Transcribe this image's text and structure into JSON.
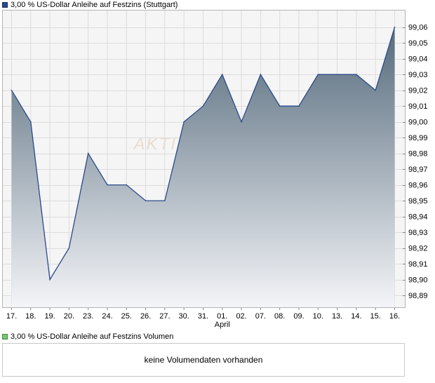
{
  "price_legend": {
    "label": "3,00 % US-Dollar Anleihe auf Festzins (Stuttgart)",
    "swatch_color": "#2a4a8c"
  },
  "volume_legend": {
    "label": "3,00 % US-Dollar Anleihe auf Festzins Volumen",
    "swatch_color": "#7cc47a"
  },
  "volume_panel": {
    "message": "keine Volumendaten vorhanden"
  },
  "chart_data": {
    "type": "area",
    "categories": [
      "17.",
      "18.",
      "19.",
      "20.",
      "23.",
      "24.",
      "25.",
      "26.",
      "27.",
      "30.",
      "31.",
      "01.",
      "02.",
      "07.",
      "08.",
      "09.",
      "10.",
      "13.",
      "14.",
      "15.",
      "16."
    ],
    "month_labels": [
      {
        "index": 11,
        "label": "April"
      }
    ],
    "series": [
      {
        "values": [
          99.02,
          99.0,
          98.9,
          98.92,
          98.98,
          98.96,
          98.96,
          98.95,
          98.95,
          99.0,
          99.01,
          99.03,
          99.0,
          99.03,
          99.01,
          99.01,
          99.03,
          99.03,
          99.03,
          99.02,
          99.06
        ]
      }
    ],
    "yticks": [
      98.89,
      98.9,
      98.91,
      98.92,
      98.93,
      98.94,
      98.95,
      98.96,
      98.97,
      98.98,
      98.99,
      99.0,
      99.01,
      99.02,
      99.03,
      99.04,
      99.05,
      99.06
    ],
    "ytick_labels": [
      "98,89",
      "98,90",
      "98,91",
      "98,92",
      "98,93",
      "98,94",
      "98,95",
      "98,96",
      "98,97",
      "98,98",
      "98,99",
      "99,00",
      "99,01",
      "99,02",
      "99,03",
      "99,04",
      "99,05",
      "99,06"
    ],
    "ylim": [
      98.882,
      99.071
    ],
    "y_axis_position": "right",
    "grid": true,
    "line_color": "#2a4a8c",
    "fill_top_color": "#566b7c",
    "fill_bottom_color": "#f4f5f8",
    "watermark": "AKTIEN"
  }
}
